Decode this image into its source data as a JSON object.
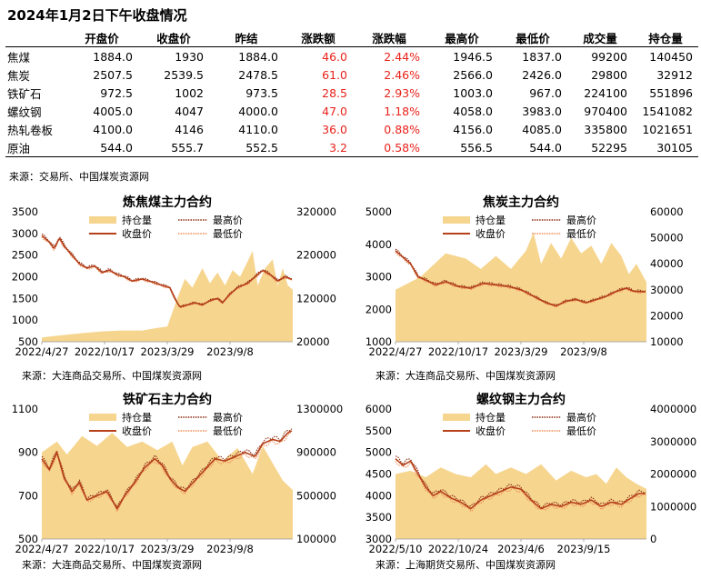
{
  "title": "2024年1月2日下午收盘情况",
  "table": {
    "headers": [
      "",
      "开盘价",
      "收盘价",
      "昨结",
      "涨跌额",
      "涨跌幅",
      "最高价",
      "最低价",
      "成交量",
      "持仓量"
    ],
    "rows": [
      {
        "name": "焦煤",
        "open": "1884.0",
        "close": "1930",
        "settle": "1884.0",
        "chg": "46.0",
        "pct": "2.44%",
        "high": "1946.5",
        "low": "1837.0",
        "volume": "99200",
        "oi": "140450"
      },
      {
        "name": "焦炭",
        "open": "2507.5",
        "close": "2539.5",
        "settle": "2478.5",
        "chg": "61.0",
        "pct": "2.46%",
        "high": "2566.0",
        "low": "2426.0",
        "volume": "29800",
        "oi": "32912"
      },
      {
        "name": "铁矿石",
        "open": "972.5",
        "close": "1002",
        "settle": "973.5",
        "chg": "28.5",
        "pct": "2.93%",
        "high": "1003.0",
        "low": "967.0",
        "volume": "224100",
        "oi": "551896"
      },
      {
        "name": "螺纹钢",
        "open": "4005.0",
        "close": "4047",
        "settle": "4000.0",
        "chg": "47.0",
        "pct": "1.18%",
        "high": "4058.0",
        "low": "3983.0",
        "volume": "970400",
        "oi": "1541082"
      },
      {
        "name": "热轧卷板",
        "open": "4100.0",
        "close": "4146",
        "settle": "4110.0",
        "chg": "36.0",
        "pct": "0.88%",
        "high": "4156.0",
        "low": "4085.0",
        "volume": "335800",
        "oi": "1021651"
      },
      {
        "name": "原油",
        "open": "544.0",
        "close": "555.7",
        "settle": "552.5",
        "chg": "3.2",
        "pct": "0.58%",
        "high": "556.5",
        "low": "544.0",
        "volume": "52295",
        "oi": "30105"
      }
    ],
    "source": "来源：交易所、中国煤炭资源网"
  },
  "colors": {
    "oi_fill": "#f6d58f",
    "close": "#b5401a",
    "high": "#8b2a0f",
    "low": "#ef8a52",
    "change_red": "#e8221b"
  },
  "legend_labels": {
    "oi": "持仓量",
    "close": "收盘价",
    "high": "最高价",
    "low": "最低价"
  },
  "chart_data": [
    {
      "type": "line",
      "title": "炼焦煤主力合约",
      "source": "来源：大连商品交易所、中国煤炭资源网",
      "x_ticks": [
        "2022/4/27",
        "2022/10/17",
        "2023/3/29",
        "2023/9/8"
      ],
      "y_left": {
        "ticks": [
          "500",
          "1000",
          "1500",
          "2000",
          "2500",
          "3000",
          "3500"
        ],
        "range": [
          500,
          3500
        ]
      },
      "y_right": {
        "ticks": [
          "20000",
          "120000",
          "220000",
          "320000"
        ],
        "range": [
          20000,
          320000
        ]
      },
      "x_range": [
        0,
        100
      ],
      "close": [
        [
          0,
          2950
        ],
        [
          3,
          2800
        ],
        [
          5,
          2650
        ],
        [
          7,
          2900
        ],
        [
          9,
          2700
        ],
        [
          12,
          2500
        ],
        [
          15,
          2300
        ],
        [
          18,
          2200
        ],
        [
          21,
          2250
        ],
        [
          24,
          2100
        ],
        [
          27,
          2150
        ],
        [
          30,
          2050
        ],
        [
          33,
          2000
        ],
        [
          36,
          1900
        ],
        [
          40,
          1950
        ],
        [
          44,
          1880
        ],
        [
          48,
          1800
        ],
        [
          51,
          1750
        ],
        [
          53,
          1500
        ],
        [
          55,
          1300
        ],
        [
          58,
          1350
        ],
        [
          61,
          1400
        ],
        [
          64,
          1350
        ],
        [
          67,
          1450
        ],
        [
          70,
          1500
        ],
        [
          72,
          1400
        ],
        [
          75,
          1600
        ],
        [
          78,
          1750
        ],
        [
          82,
          1850
        ],
        [
          85,
          2000
        ],
        [
          88,
          2150
        ],
        [
          91,
          2050
        ],
        [
          94,
          1900
        ],
        [
          97,
          2000
        ],
        [
          100,
          1930
        ]
      ],
      "oi": [
        [
          0,
          30000
        ],
        [
          8,
          35000
        ],
        [
          16,
          40000
        ],
        [
          24,
          44000
        ],
        [
          32,
          46000
        ],
        [
          40,
          46000
        ],
        [
          46,
          52000
        ],
        [
          50,
          55000
        ],
        [
          54,
          120000
        ],
        [
          57,
          165000
        ],
        [
          60,
          145000
        ],
        [
          64,
          190000
        ],
        [
          67,
          155000
        ],
        [
          70,
          180000
        ],
        [
          73,
          150000
        ],
        [
          76,
          185000
        ],
        [
          79,
          170000
        ],
        [
          82,
          205000
        ],
        [
          84,
          230000
        ],
        [
          86,
          150000
        ],
        [
          89,
          190000
        ],
        [
          92,
          210000
        ],
        [
          94,
          150000
        ],
        [
          96,
          190000
        ],
        [
          98,
          150000
        ],
        [
          100,
          140450
        ]
      ]
    },
    {
      "type": "line",
      "title": "焦炭主力合约",
      "source": "来源：大连商品交易所、中国煤炭资源网",
      "x_ticks": [
        "2022/4/27",
        "2022/10/17",
        "2023/3/29",
        "2023/9/8"
      ],
      "y_left": {
        "ticks": [
          "1000",
          "2000",
          "3000",
          "4000",
          "5000"
        ],
        "range": [
          1000,
          5000
        ]
      },
      "y_right": {
        "ticks": [
          "10000",
          "20000",
          "30000",
          "40000",
          "50000",
          "60000"
        ],
        "range": [
          10000,
          60000
        ]
      },
      "x_range": [
        0,
        100
      ],
      "close": [
        [
          0,
          3800
        ],
        [
          3,
          3600
        ],
        [
          6,
          3400
        ],
        [
          9,
          3000
        ],
        [
          12,
          2900
        ],
        [
          16,
          2750
        ],
        [
          20,
          2850
        ],
        [
          25,
          2700
        ],
        [
          30,
          2650
        ],
        [
          35,
          2800
        ],
        [
          40,
          2750
        ],
        [
          45,
          2700
        ],
        [
          50,
          2600
        ],
        [
          55,
          2400
        ],
        [
          60,
          2200
        ],
        [
          64,
          2100
        ],
        [
          68,
          2250
        ],
        [
          72,
          2300
        ],
        [
          76,
          2200
        ],
        [
          80,
          2300
        ],
        [
          84,
          2400
        ],
        [
          88,
          2550
        ],
        [
          92,
          2650
        ],
        [
          95,
          2550
        ],
        [
          100,
          2539.5
        ]
      ],
      "oi": [
        [
          0,
          30000
        ],
        [
          10,
          35000
        ],
        [
          20,
          44000
        ],
        [
          28,
          42000
        ],
        [
          34,
          38000
        ],
        [
          40,
          43000
        ],
        [
          46,
          38000
        ],
        [
          52,
          45000
        ],
        [
          55,
          52000
        ],
        [
          58,
          40000
        ],
        [
          62,
          48000
        ],
        [
          66,
          42000
        ],
        [
          70,
          50000
        ],
        [
          74,
          44000
        ],
        [
          78,
          47000
        ],
        [
          82,
          40000
        ],
        [
          86,
          48000
        ],
        [
          90,
          43000
        ],
        [
          93,
          36000
        ],
        [
          96,
          40000
        ],
        [
          100,
          32912
        ]
      ]
    },
    {
      "type": "line",
      "title": "铁矿石主力合约",
      "source": "来源：大连商品交易所、中国煤炭资源网",
      "x_ticks": [
        "2022/4/27",
        "2022/10/17",
        "2023/3/29",
        "2023/9/8"
      ],
      "y_left": {
        "ticks": [
          "500",
          "700",
          "900",
          "1100"
        ],
        "range": [
          500,
          1100
        ]
      },
      "y_right": {
        "ticks": [
          "100000",
          "500000",
          "900000",
          "1300000"
        ],
        "range": [
          100000,
          1300000
        ]
      },
      "x_range": [
        0,
        100
      ],
      "close": [
        [
          0,
          870
        ],
        [
          3,
          820
        ],
        [
          6,
          900
        ],
        [
          9,
          780
        ],
        [
          12,
          720
        ],
        [
          15,
          760
        ],
        [
          18,
          680
        ],
        [
          22,
          700
        ],
        [
          26,
          720
        ],
        [
          30,
          640
        ],
        [
          33,
          700
        ],
        [
          37,
          760
        ],
        [
          41,
          830
        ],
        [
          45,
          870
        ],
        [
          48,
          840
        ],
        [
          51,
          780
        ],
        [
          54,
          740
        ],
        [
          57,
          720
        ],
        [
          61,
          770
        ],
        [
          65,
          820
        ],
        [
          69,
          870
        ],
        [
          73,
          860
        ],
        [
          77,
          880
        ],
        [
          81,
          900
        ],
        [
          85,
          880
        ],
        [
          88,
          940
        ],
        [
          92,
          960
        ],
        [
          95,
          950
        ],
        [
          98,
          990
        ],
        [
          100,
          1002
        ]
      ],
      "oi": [
        [
          0,
          900000
        ],
        [
          6,
          1000000
        ],
        [
          10,
          880000
        ],
        [
          16,
          1050000
        ],
        [
          22,
          960000
        ],
        [
          28,
          1080000
        ],
        [
          34,
          950000
        ],
        [
          40,
          1000000
        ],
        [
          46,
          920000
        ],
        [
          52,
          1000000
        ],
        [
          56,
          780000
        ],
        [
          60,
          950000
        ],
        [
          66,
          1000000
        ],
        [
          72,
          820000
        ],
        [
          78,
          940000
        ],
        [
          84,
          700000
        ],
        [
          88,
          960000
        ],
        [
          92,
          800000
        ],
        [
          96,
          640000
        ],
        [
          100,
          551896
        ]
      ]
    },
    {
      "type": "line",
      "title": "螺纹钢主力合约",
      "source": "来源：上海期货交易所、中国煤炭资源网",
      "x_ticks": [
        "2022/5/10",
        "2022/10/24",
        "2023/4/6",
        "2023/9/15"
      ],
      "y_left": {
        "ticks": [
          "3000",
          "3500",
          "4000",
          "4500",
          "5000",
          "5500",
          "6000"
        ],
        "range": [
          3000,
          6000
        ]
      },
      "y_right": {
        "ticks": [
          "0",
          "1000000",
          "2000000",
          "3000000",
          "4000000"
        ],
        "range": [
          0,
          4000000
        ]
      },
      "x_range": [
        0,
        100
      ],
      "close": [
        [
          0,
          4850
        ],
        [
          3,
          4700
        ],
        [
          6,
          4800
        ],
        [
          9,
          4500
        ],
        [
          12,
          4200
        ],
        [
          15,
          4000
        ],
        [
          18,
          4100
        ],
        [
          22,
          3950
        ],
        [
          26,
          3850
        ],
        [
          30,
          3700
        ],
        [
          34,
          3900
        ],
        [
          38,
          4000
        ],
        [
          42,
          4100
        ],
        [
          46,
          4200
        ],
        [
          50,
          4150
        ],
        [
          54,
          3900
        ],
        [
          58,
          3700
        ],
        [
          62,
          3800
        ],
        [
          66,
          3750
        ],
        [
          70,
          3850
        ],
        [
          74,
          3800
        ],
        [
          78,
          3900
        ],
        [
          82,
          3750
        ],
        [
          86,
          3850
        ],
        [
          90,
          3800
        ],
        [
          94,
          3950
        ],
        [
          97,
          4050
        ],
        [
          100,
          4047
        ]
      ],
      "oi": [
        [
          0,
          2000000
        ],
        [
          6,
          2100000
        ],
        [
          12,
          1900000
        ],
        [
          18,
          2200000
        ],
        [
          24,
          2000000
        ],
        [
          30,
          1900000
        ],
        [
          36,
          2300000
        ],
        [
          40,
          2000000
        ],
        [
          46,
          2200000
        ],
        [
          52,
          2000000
        ],
        [
          58,
          2300000
        ],
        [
          64,
          1800000
        ],
        [
          70,
          2100000
        ],
        [
          76,
          1900000
        ],
        [
          80,
          2000000
        ],
        [
          84,
          1700000
        ],
        [
          88,
          2200000
        ],
        [
          92,
          1900000
        ],
        [
          96,
          1700000
        ],
        [
          100,
          1541082
        ]
      ]
    }
  ]
}
